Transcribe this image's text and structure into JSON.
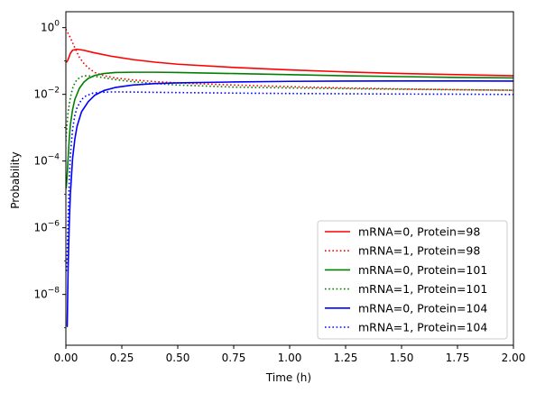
{
  "chart_data": {
    "type": "line",
    "title": "",
    "xlabel": "Time (h)",
    "ylabel": "Probability",
    "xlim": [
      0,
      2.0
    ],
    "ylim": [
      3e-10,
      3
    ],
    "yscale": "log",
    "grid": false,
    "legend_position": "lower-right",
    "x_ticks": [
      0.0,
      0.25,
      0.5,
      0.75,
      1.0,
      1.25,
      1.5,
      1.75,
      2.0
    ],
    "x_tick_labels": [
      "0.00",
      "0.25",
      "0.50",
      "0.75",
      "1.00",
      "1.25",
      "1.50",
      "1.75",
      "2.00"
    ],
    "y_ticks": [
      1e-08,
      1e-06,
      0.0001,
      0.01,
      1
    ],
    "y_tick_labels": [
      {
        "base": "10",
        "exp": "−8"
      },
      {
        "base": "10",
        "exp": "−6"
      },
      {
        "base": "10",
        "exp": "−4"
      },
      {
        "base": "10",
        "exp": "−2"
      },
      {
        "base": "10",
        "exp": "0"
      }
    ],
    "series": [
      {
        "name": "mRNA=0, Protein=98",
        "color": "#ff0000",
        "dash": "solid",
        "x": [
          0.002,
          0.01,
          0.02,
          0.03,
          0.05,
          0.08,
          0.12,
          0.2,
          0.3,
          0.4,
          0.5,
          0.75,
          1.0,
          1.25,
          1.5,
          1.75,
          2.0
        ],
        "y": [
          0.09,
          0.11,
          0.17,
          0.21,
          0.225,
          0.21,
          0.18,
          0.14,
          0.11,
          0.092,
          0.08,
          0.064,
          0.054,
          0.047,
          0.042,
          0.039,
          0.036
        ]
      },
      {
        "name": "mRNA=1, Protein=98",
        "color": "#ff0000",
        "dash": "dotted",
        "x": [
          0.0,
          0.02,
          0.04,
          0.06,
          0.08,
          0.1,
          0.13,
          0.17,
          0.22,
          0.3,
          0.4,
          0.5,
          0.75,
          1.0,
          1.25,
          1.5,
          1.75,
          2.0
        ],
        "y": [
          0.9,
          0.5,
          0.25,
          0.13,
          0.085,
          0.062,
          0.045,
          0.036,
          0.031,
          0.027,
          0.024,
          0.022,
          0.019,
          0.017,
          0.0155,
          0.0145,
          0.0138,
          0.0132
        ]
      },
      {
        "name": "mRNA=0, Protein=101",
        "color": "#008000",
        "dash": "solid",
        "x": [
          0.001,
          0.005,
          0.01,
          0.015,
          0.02,
          0.03,
          0.04,
          0.06,
          0.08,
          0.1,
          0.13,
          0.17,
          0.22,
          0.3,
          0.4,
          0.5,
          0.75,
          1.0,
          1.25,
          1.5,
          1.75,
          2.0
        ],
        "y": [
          1.5e-05,
          3e-05,
          0.00012,
          0.00045,
          0.0012,
          0.0035,
          0.007,
          0.015,
          0.023,
          0.03,
          0.037,
          0.042,
          0.045,
          0.046,
          0.046,
          0.045,
          0.042,
          0.039,
          0.036,
          0.034,
          0.032,
          0.031
        ]
      },
      {
        "name": "mRNA=1, Protein=101",
        "color": "#008000",
        "dash": "dotted",
        "x": [
          0.0,
          0.005,
          0.01,
          0.02,
          0.03,
          0.04,
          0.05,
          0.07,
          0.09,
          0.12,
          0.15,
          0.2,
          0.25,
          0.3,
          0.4,
          0.5,
          0.75,
          1.0,
          1.25,
          1.5,
          1.75,
          2.0
        ],
        "y": [
          0.0004,
          0.0012,
          0.003,
          0.008,
          0.015,
          0.022,
          0.028,
          0.034,
          0.036,
          0.035,
          0.033,
          0.029,
          0.026,
          0.024,
          0.021,
          0.019,
          0.0165,
          0.0155,
          0.0148,
          0.0142,
          0.0137,
          0.0133
        ]
      },
      {
        "name": "mRNA=0, Protein=104",
        "color": "#0000ff",
        "dash": "solid",
        "x": [
          0.004,
          0.006,
          0.01,
          0.015,
          0.02,
          0.03,
          0.04,
          0.05,
          0.07,
          0.1,
          0.13,
          0.17,
          0.22,
          0.3,
          0.4,
          0.5,
          0.75,
          1.0,
          1.25,
          1.5,
          1.75,
          2.0
        ],
        "y": [
          1.1e-09,
          1.1e-09,
          6e-08,
          1.2e-06,
          1e-05,
          0.00012,
          0.00045,
          0.0011,
          0.003,
          0.006,
          0.0095,
          0.013,
          0.016,
          0.019,
          0.021,
          0.022,
          0.0235,
          0.0245,
          0.025,
          0.0252,
          0.0252,
          0.025
        ]
      },
      {
        "name": "mRNA=1, Protein=104",
        "color": "#0000ff",
        "dash": "dotted",
        "x": [
          0.002,
          0.005,
          0.01,
          0.015,
          0.02,
          0.03,
          0.04,
          0.05,
          0.07,
          0.09,
          0.12,
          0.15,
          0.2,
          0.25,
          0.3,
          0.4,
          0.5,
          0.75,
          1.0,
          1.25,
          1.5,
          1.75,
          2.0
        ],
        "y": [
          5e-08,
          1e-07,
          2e-06,
          2.5e-05,
          0.00015,
          0.0009,
          0.0023,
          0.004,
          0.007,
          0.009,
          0.0108,
          0.0115,
          0.0118,
          0.0118,
          0.0117,
          0.0115,
          0.0113,
          0.0109,
          0.0106,
          0.0104,
          0.0102,
          0.0101,
          0.0099
        ]
      }
    ]
  }
}
